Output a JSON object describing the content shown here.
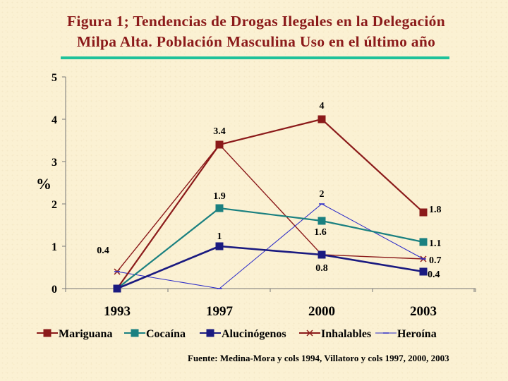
{
  "title_line1": "Figura 1; Tendencias de Drogas Ilegales en  la Delegación",
  "title_line2": "Milpa Alta. Población Masculina Uso en el último año",
  "source": "Fuente: Medina-Mora y cols 1994, Villatoro y cols 1997, 2000, 2003",
  "colors": {
    "title": "#8b1a1a",
    "rule": "#1ec29a"
  },
  "chart_data": {
    "type": "line",
    "title": "Figura 1; Tendencias de Drogas Ilegales en  la Delegación Milpa Alta. Población Masculina Uso en el último año",
    "xlabel": "",
    "ylabel": "%",
    "categories": [
      "1993",
      "1997",
      "2000",
      "2003"
    ],
    "ylim": [
      0,
      5
    ],
    "yticks": [
      "0",
      "1",
      "2",
      "3",
      "4",
      "5"
    ],
    "grid": false,
    "legend_position": "bottom",
    "series": [
      {
        "name": "Mariguana",
        "values": [
          0,
          3.4,
          4,
          1.8
        ],
        "labels": [
          "",
          "3.4",
          "4",
          "1.8"
        ],
        "color": "#8b1a1a",
        "marker": "square",
        "width": 2.2
      },
      {
        "name": "Cocaína",
        "values": [
          0,
          1.9,
          1.6,
          1.1
        ],
        "labels": [
          "",
          "1.9",
          "1.6",
          "1.1"
        ],
        "color": "#1a8080",
        "marker": "square",
        "width": 2.2
      },
      {
        "name": "Alucinógenos",
        "values": [
          0,
          1,
          0.8,
          0.4
        ],
        "labels": [
          "",
          "1",
          "0.8",
          "0.4"
        ],
        "color": "#1a1a80",
        "marker": "square",
        "width": 2.6
      },
      {
        "name": "Inhalables",
        "values": [
          0.4,
          3.4,
          0.8,
          0.7
        ],
        "labels": [
          "0.4",
          "",
          "",
          "0.7"
        ],
        "color": "#8b1a1a",
        "marker": "x",
        "width": 1.4
      },
      {
        "name": "Heroína",
        "values": [
          0.4,
          0,
          2,
          0.7
        ],
        "labels": [
          "",
          "",
          "2",
          ""
        ],
        "color": "#2a2ac8",
        "marker": "dash",
        "width": 1
      }
    ]
  }
}
